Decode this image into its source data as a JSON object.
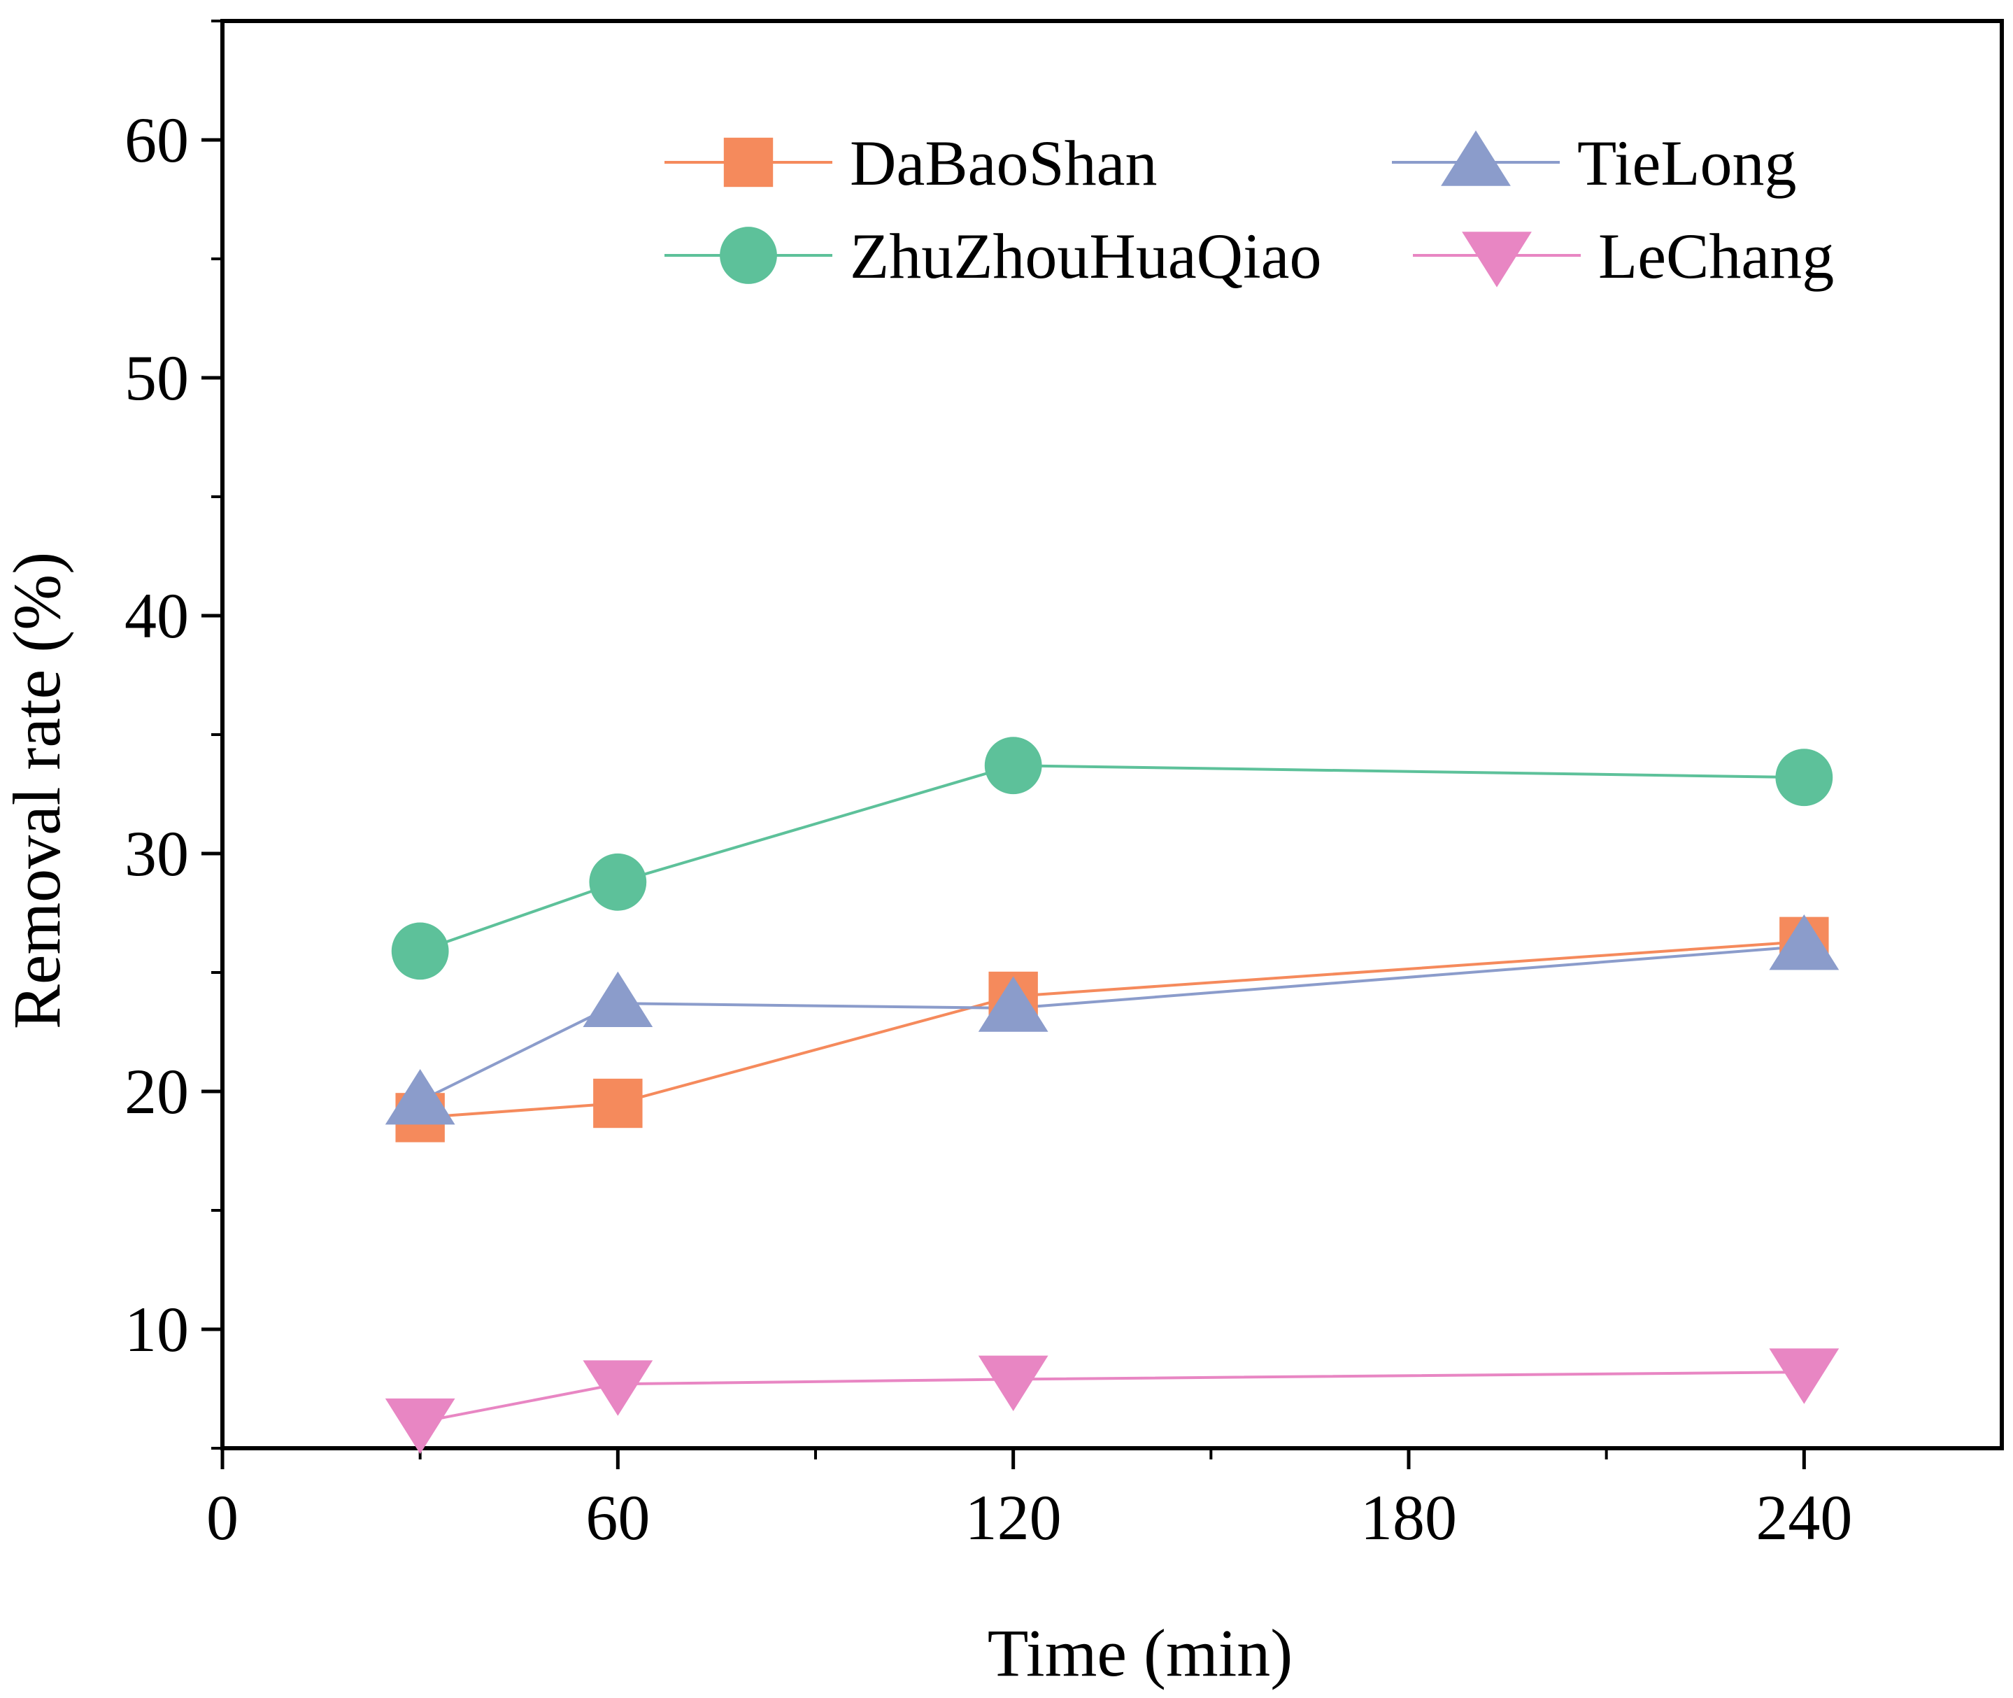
{
  "chart_data": {
    "type": "line",
    "title": "",
    "xlabel": "Time (min)",
    "ylabel": "Removal rate (%)",
    "xlim": [
      0,
      270
    ],
    "ylim": [
      5,
      65
    ],
    "xticks": [
      0,
      60,
      120,
      180,
      240
    ],
    "yticks": [
      10,
      20,
      30,
      40,
      50,
      60
    ],
    "grid": false,
    "legend_position": "top-right",
    "series": [
      {
        "name": "DaBaoShan",
        "marker": "square",
        "color": "#F58A5C",
        "x": [
          30,
          60,
          120,
          240
        ],
        "y": [
          18.9,
          19.5,
          24.0,
          26.3
        ]
      },
      {
        "name": "ZhuZhouHuaQiao",
        "marker": "circle",
        "color": "#5DC19A",
        "x": [
          30,
          60,
          120,
          240
        ],
        "y": [
          25.9,
          28.8,
          33.7,
          33.2
        ]
      },
      {
        "name": "TieLong",
        "marker": "triangle-up",
        "color": "#8B9CCB",
        "x": [
          30,
          60,
          120,
          240
        ],
        "y": [
          19.6,
          23.7,
          23.5,
          26.1
        ]
      },
      {
        "name": "LeChang",
        "marker": "triangle-down",
        "color": "#E886C3",
        "x": [
          30,
          60,
          120,
          240
        ],
        "y": [
          6.1,
          7.7,
          7.9,
          8.2
        ]
      }
    ]
  }
}
